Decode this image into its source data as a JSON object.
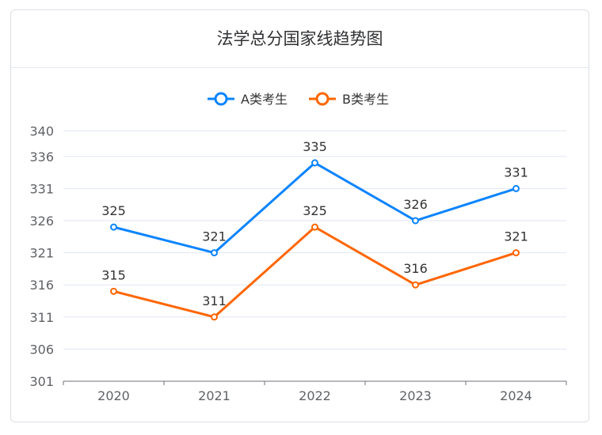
{
  "chart_data": {
    "type": "line",
    "title": "法学总分国家线趋势图",
    "categories": [
      "2020",
      "2021",
      "2022",
      "2023",
      "2024"
    ],
    "series": [
      {
        "name": "A类考生",
        "values": [
          325,
          321,
          335,
          326,
          331
        ],
        "color": "#0a84ff"
      },
      {
        "name": "B类考生",
        "values": [
          315,
          311,
          325,
          316,
          321
        ],
        "color": "#ff6600"
      }
    ],
    "yticks": [
      301,
      306,
      311,
      316,
      321,
      326,
      331,
      336,
      340
    ],
    "ylim": [
      301,
      340
    ],
    "grid": true,
    "legend": "top-center",
    "data_labels": true
  }
}
